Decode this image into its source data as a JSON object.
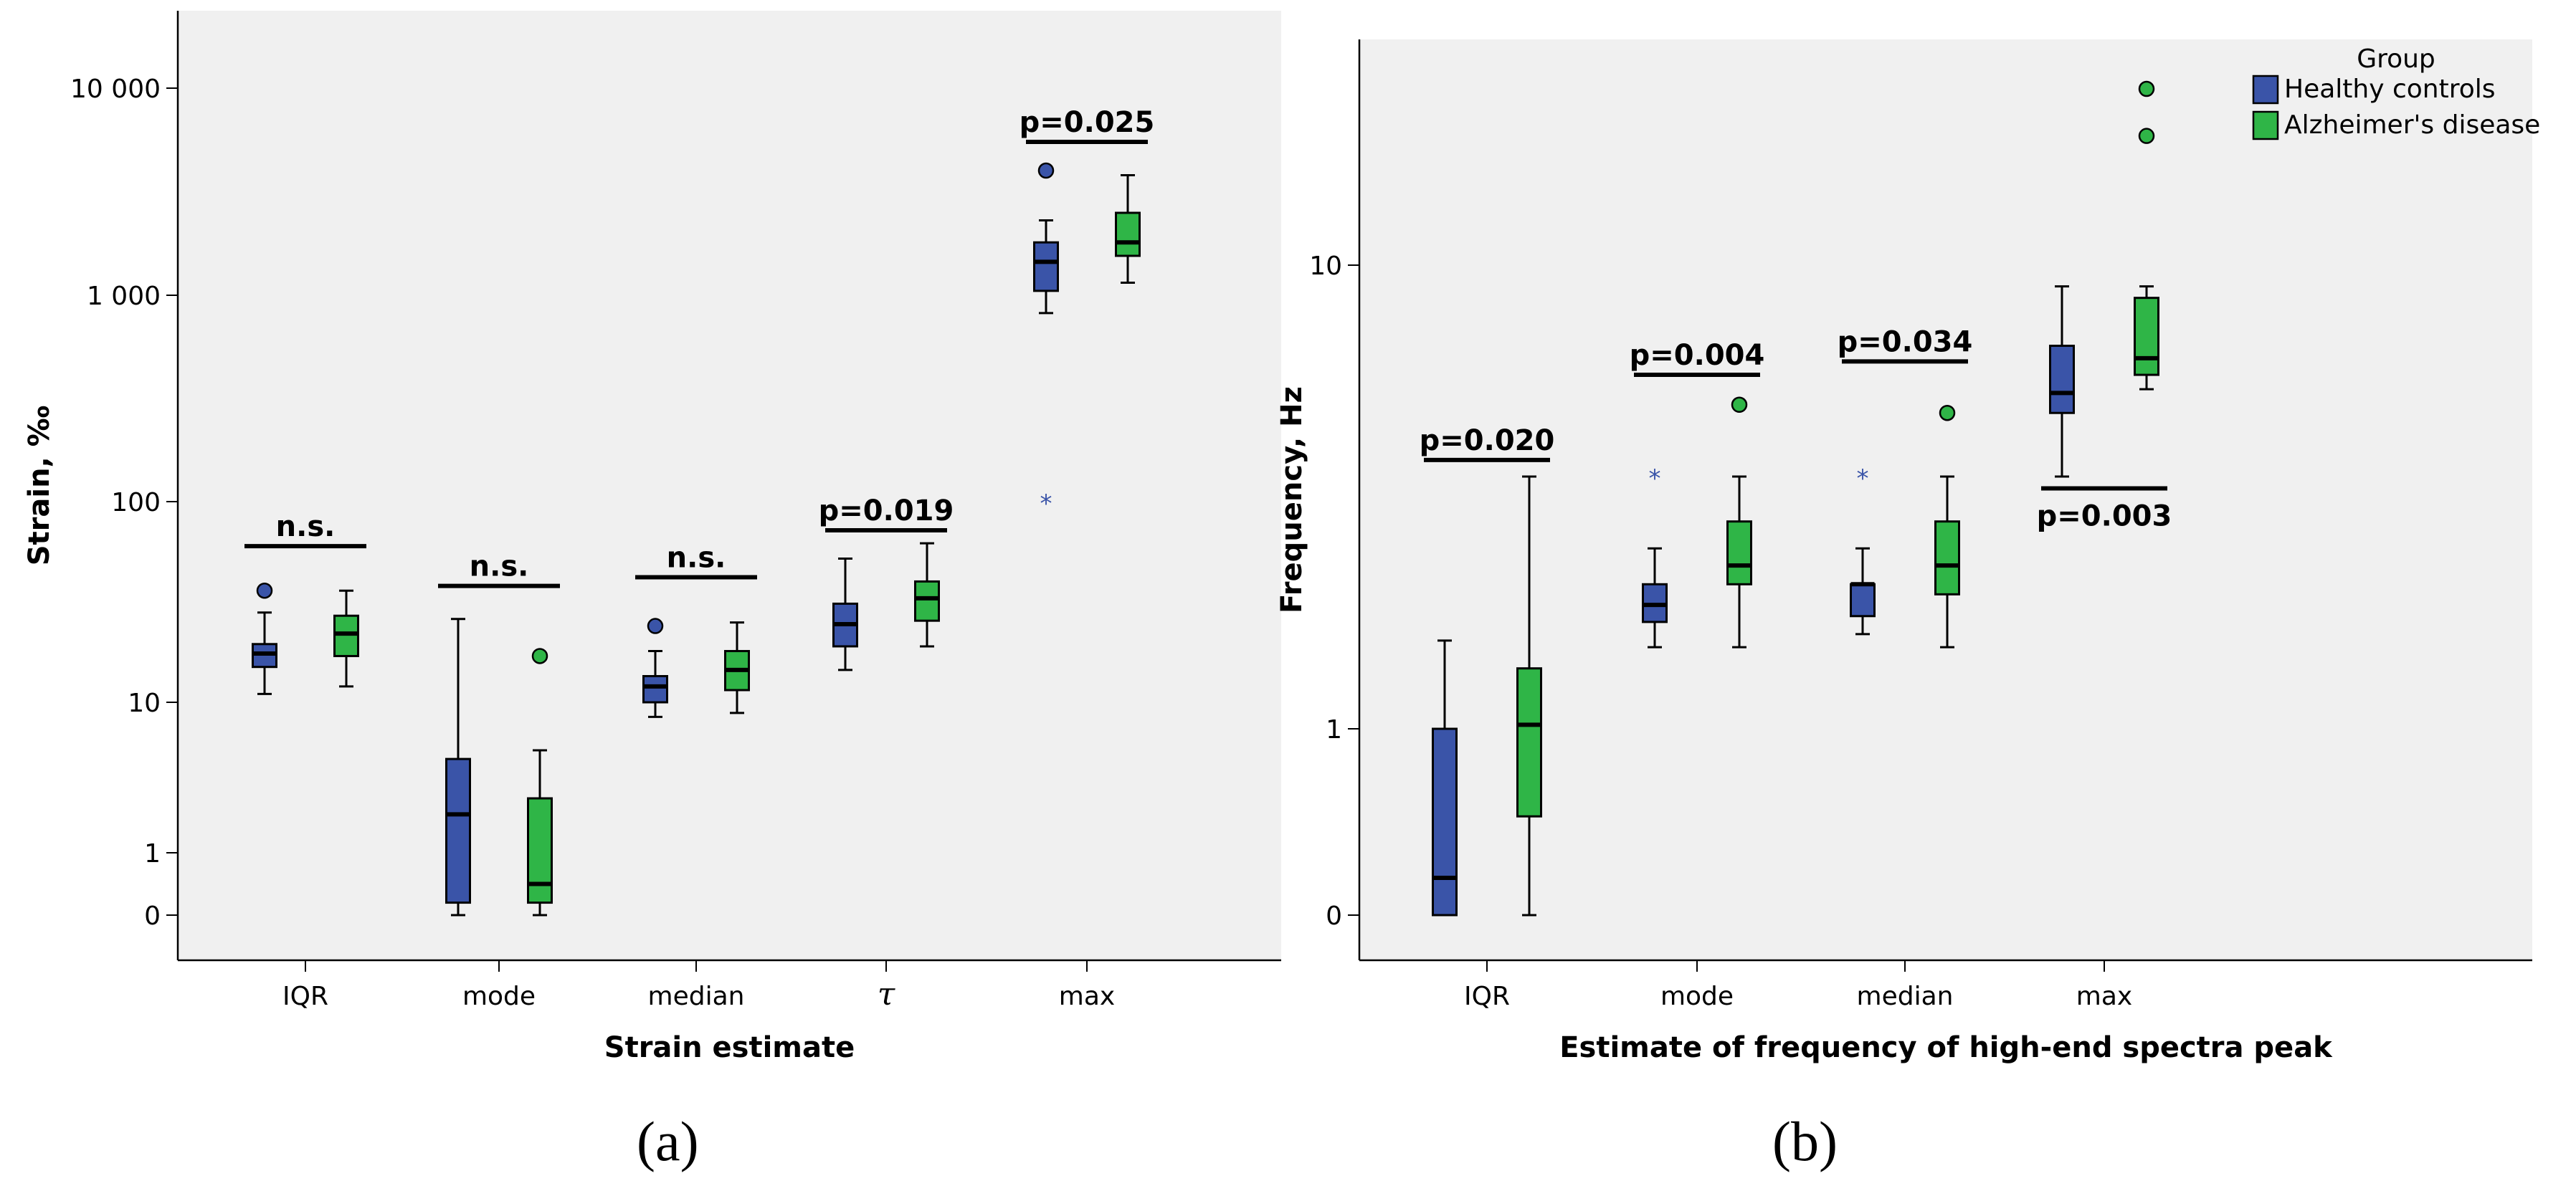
{
  "colors": {
    "healthy": "#3a54a8",
    "alzheimer": "#2fb547",
    "plot_bg": "#f0f0f0",
    "axis": "#000000"
  },
  "chart_data": [
    {
      "type": "boxplot",
      "panel": "(a)",
      "scale": "log-like",
      "xlabel": "Strain estimate",
      "ylabel": "Strain, ‰",
      "categories": [
        "IQR",
        "mode",
        "median",
        "τ",
        "max"
      ],
      "yticks": [
        {
          "value": 0,
          "label": "0"
        },
        {
          "value": 1,
          "label": "1"
        },
        {
          "value": 10,
          "label": "10"
        },
        {
          "value": 100,
          "label": "100"
        },
        {
          "value": 1000,
          "label": "1 000"
        },
        {
          "value": 10000,
          "label": "10 000"
        }
      ],
      "series": [
        {
          "name": "Healthy controls",
          "boxes": [
            {
              "min": 11,
              "q1": 15,
              "median": 17.5,
              "q3": 19.5,
              "max": 28,
              "outliers": [
                {
                  "v": 36,
                  "kind": "circle"
                }
              ]
            },
            {
              "min": 0,
              "q1": 0.2,
              "median": 1.8,
              "q3": 4.2,
              "max": 26,
              "outliers": []
            },
            {
              "min": 8,
              "q1": 10,
              "median": 12,
              "q3": 13.5,
              "max": 18,
              "outliers": [
                {
                  "v": 24,
                  "kind": "circle"
                }
              ]
            },
            {
              "min": 14.5,
              "q1": 19,
              "median": 24.5,
              "q3": 31,
              "max": 52,
              "outliers": []
            },
            {
              "min": 820,
              "q1": 1050,
              "median": 1450,
              "q3": 1800,
              "max": 2300,
              "outliers": [
                {
                  "v": 4000,
                  "kind": "circle"
                },
                {
                  "v": 100,
                  "kind": "star"
                }
              ]
            }
          ]
        },
        {
          "name": "Alzheimer's disease",
          "boxes": [
            {
              "min": 12,
              "q1": 17,
              "median": 22,
              "q3": 27,
              "max": 36,
              "outliers": []
            },
            {
              "min": 0,
              "q1": 0.2,
              "median": 0.5,
              "q3": 2.3,
              "max": 4.8,
              "outliers": [
                {
                  "v": 17,
                  "kind": "circle"
                }
              ]
            },
            {
              "min": 8.5,
              "q1": 11.5,
              "median": 14.5,
              "q3": 18,
              "max": 25,
              "outliers": []
            },
            {
              "min": 19,
              "q1": 25.5,
              "median": 33,
              "q3": 40,
              "max": 62,
              "outliers": []
            },
            {
              "min": 1150,
              "q1": 1550,
              "median": 1800,
              "q3": 2500,
              "max": 3800,
              "outliers": []
            }
          ]
        }
      ],
      "annotations": [
        {
          "category": 0,
          "text": "n.s.",
          "bar_value": 60,
          "text_position": "above"
        },
        {
          "category": 1,
          "text": "n.s.",
          "bar_value": 38,
          "text_position": "above"
        },
        {
          "category": 2,
          "text": "n.s.",
          "bar_value": 42,
          "text_position": "above"
        },
        {
          "category": 3,
          "text": "p=0.019",
          "bar_value": 72,
          "text_position": "above"
        },
        {
          "category": 4,
          "text": "p=0.025",
          "bar_value": 5500,
          "text_position": "above"
        }
      ]
    },
    {
      "type": "boxplot",
      "panel": "(b)",
      "scale": "log-like",
      "xlabel": "Estimate of frequency of high-end spectra peak",
      "ylabel": "Frequency, Hz",
      "categories": [
        "IQR",
        "mode",
        "median",
        "max"
      ],
      "yticks": [
        {
          "value": 0,
          "label": "0"
        },
        {
          "value": 1,
          "label": "1"
        },
        {
          "value": 10,
          "label": "10"
        }
      ],
      "series": [
        {
          "name": "Healthy controls",
          "boxes": [
            {
              "min": 0,
              "q1": 0,
              "median": 0.2,
              "q3": 1.0,
              "max": 1.55,
              "outliers": []
            },
            {
              "min": 1.5,
              "q1": 1.7,
              "median": 1.85,
              "q3": 2.05,
              "max": 2.45,
              "outliers": [
                {
                  "v": 3.5,
                  "kind": "star"
                }
              ]
            },
            {
              "min": 1.6,
              "q1": 1.75,
              "median": 2.05,
              "q3": 2.05,
              "max": 2.45,
              "outliers": [
                {
                  "v": 3.5,
                  "kind": "star"
                }
              ]
            },
            {
              "min": 3.5,
              "q1": 4.8,
              "median": 5.3,
              "q3": 6.7,
              "max": 9.0,
              "outliers": []
            }
          ]
        },
        {
          "name": "Alzheimer's disease",
          "boxes": [
            {
              "min": 0,
              "q1": 0.53,
              "median": 1.02,
              "q3": 1.35,
              "max": 3.5,
              "outliers": []
            },
            {
              "min": 1.5,
              "q1": 2.05,
              "median": 2.25,
              "q3": 2.8,
              "max": 3.5,
              "outliers": [
                {
                  "v": 5.0,
                  "kind": "circle"
                }
              ]
            },
            {
              "min": 1.5,
              "q1": 1.95,
              "median": 2.25,
              "q3": 2.8,
              "max": 3.5,
              "outliers": [
                {
                  "v": 4.8,
                  "kind": "circle"
                }
              ]
            },
            {
              "min": 5.4,
              "q1": 5.8,
              "median": 6.3,
              "q3": 8.5,
              "max": 9.0,
              "outliers": [
                {
                  "v": 19,
                  "kind": "circle"
                },
                {
                  "v": 24,
                  "kind": "circle"
                }
              ]
            }
          ]
        }
      ],
      "annotations": [
        {
          "category": 0,
          "text": "p=0.020",
          "bar_value": 3.8,
          "text_position": "above"
        },
        {
          "category": 1,
          "text": "p=0.004",
          "bar_value": 5.8,
          "text_position": "above"
        },
        {
          "category": 2,
          "text": "p=0.034",
          "bar_value": 6.2,
          "text_position": "above"
        },
        {
          "category": 3,
          "text": "p=0.003",
          "bar_value": 3.3,
          "text_position": "below"
        }
      ]
    }
  ],
  "legend": {
    "title": "Group",
    "items": [
      {
        "label": "Healthy controls",
        "color": "#3a54a8"
      },
      {
        "label": "Alzheimer's disease",
        "color": "#2fb547"
      }
    ]
  },
  "captions": {
    "a": "(a)",
    "b": "(b)"
  }
}
